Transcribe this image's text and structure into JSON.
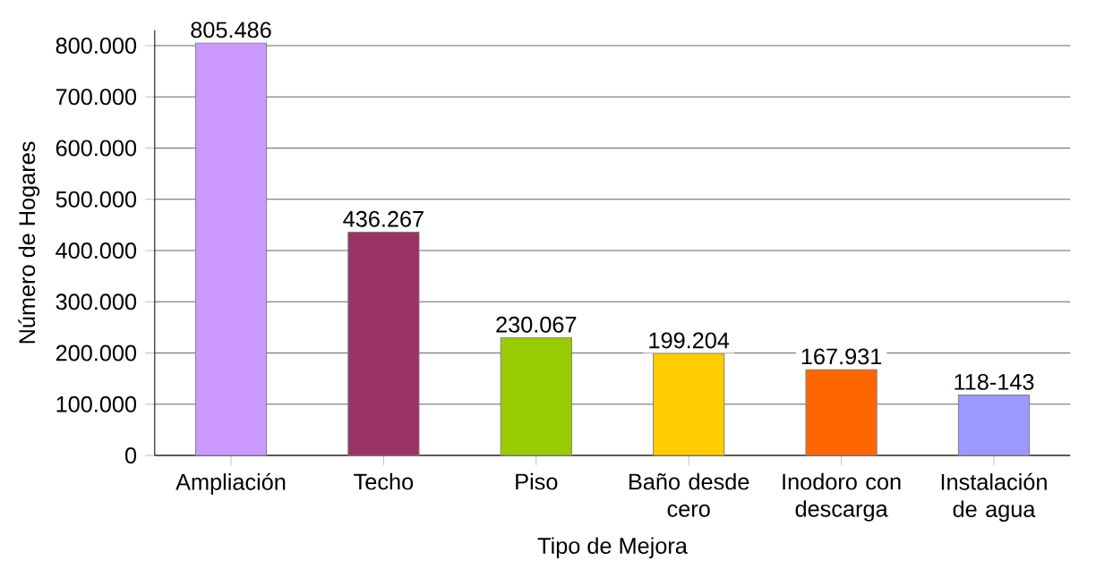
{
  "chart_data": {
    "type": "bar",
    "xlabel": "Tipo de Mejora",
    "ylabel": "Número de Hogares",
    "categories": [
      "Ampliación",
      "Techo",
      "Piso",
      "Baño desde cero",
      "Inodoro con descarga",
      "Instalación de agua"
    ],
    "values": [
      805486,
      436267,
      230067,
      199204,
      167931,
      118143
    ],
    "value_labels": [
      "805.486",
      "436.267",
      "230.067",
      "199.204",
      "167.931",
      "118-143"
    ],
    "colors": [
      "#cc99ff",
      "#993366",
      "#99cc00",
      "#ffcc00",
      "#ff6600",
      "#9999ff"
    ],
    "ylim": [
      0,
      830000
    ],
    "yticks": [
      0,
      {
        "value": 100000,
        "label": "100.000"
      },
      {
        "value": 200000,
        "label": "200.000"
      },
      {
        "value": 300000,
        "label": "300.000"
      },
      {
        "value": 400000,
        "label": "400.000"
      },
      {
        "value": 500000,
        "label": "500.000"
      },
      {
        "value": 600000,
        "label": "600.000"
      },
      {
        "value": 700000,
        "label": "700.000"
      },
      {
        "value": 800000,
        "label": "800.000"
      }
    ],
    "grid": "y"
  }
}
